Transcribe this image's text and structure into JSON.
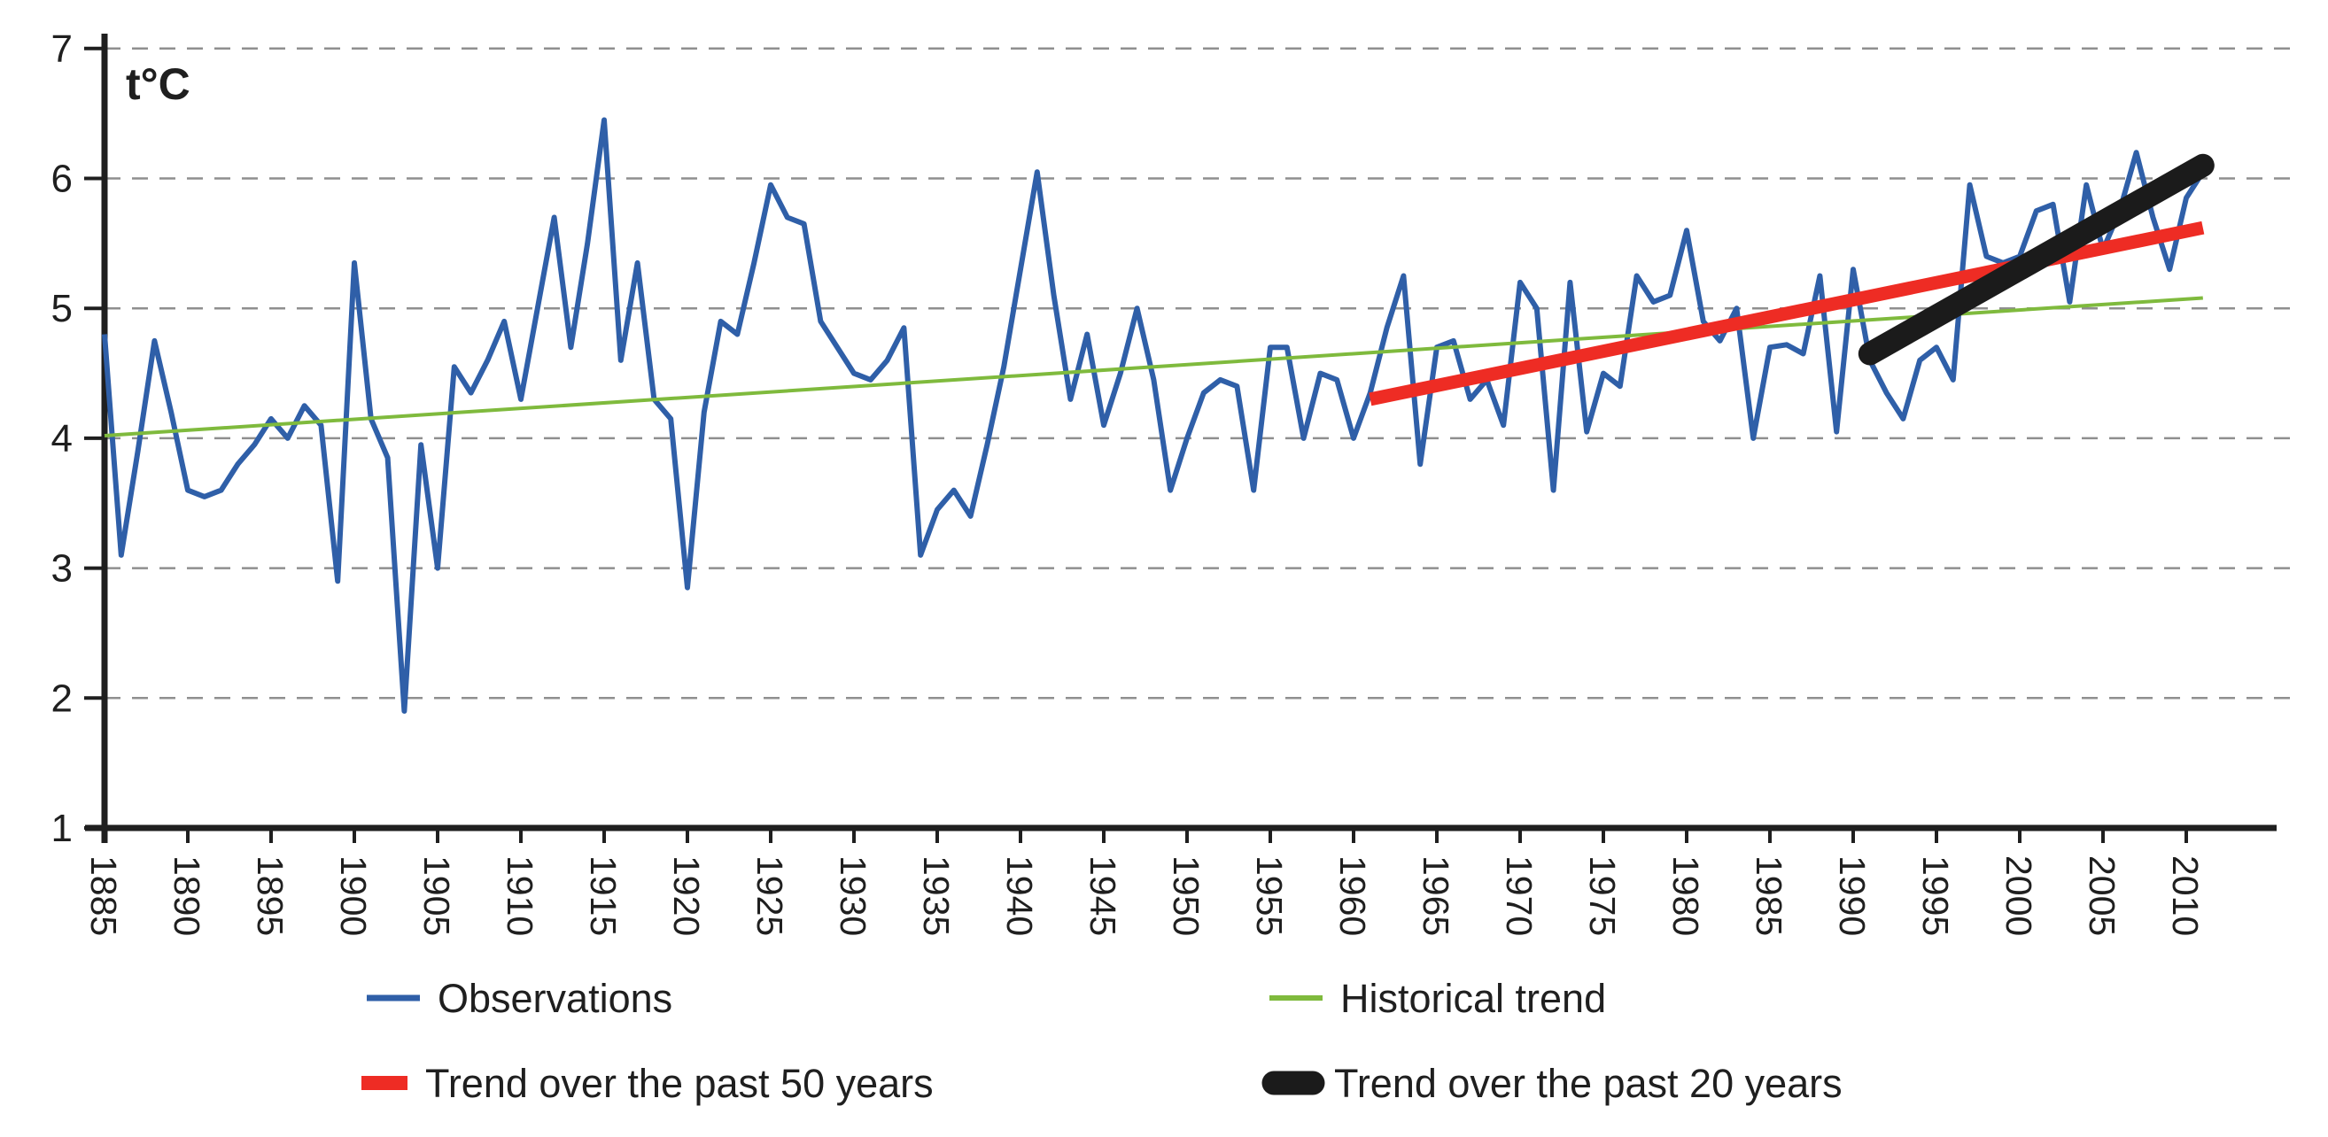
{
  "chart_data": {
    "type": "line",
    "title": "",
    "unit_label": "t°C",
    "y_axis": {
      "min": 1,
      "max": 7,
      "tick_labels": [
        "1",
        "2",
        "3",
        "4",
        "5",
        "6",
        "7"
      ],
      "gridlines_at": [
        2,
        3,
        4,
        5,
        6,
        7
      ],
      "grid_on": true
    },
    "x_axis": {
      "start_year": 1885,
      "end_year": 2011,
      "tick_labels": [
        "1885",
        "1890",
        "1895",
        "1900",
        "1905",
        "1910",
        "1915",
        "1920",
        "1925",
        "1930",
        "1935",
        "1940",
        "1945",
        "1950",
        "1955",
        "1960",
        "1965",
        "1970",
        "1975",
        "1980",
        "1985",
        "1990",
        "1995",
        "2000",
        "2005",
        "2010"
      ]
    },
    "series": [
      {
        "name": "Observations",
        "type": "annual",
        "color": "#2f5fa8",
        "stroke_width": 6,
        "start_year": 1885,
        "values": [
          4.8,
          3.1,
          3.9,
          4.75,
          4.2,
          3.6,
          3.55,
          3.6,
          3.8,
          3.95,
          4.15,
          4.0,
          4.25,
          4.1,
          2.9,
          5.35,
          4.15,
          3.85,
          1.9,
          3.95,
          3.0,
          4.55,
          4.35,
          4.6,
          4.9,
          4.3,
          5.0,
          5.7,
          4.7,
          5.5,
          6.45,
          4.6,
          5.35,
          4.3,
          4.15,
          2.85,
          4.2,
          4.9,
          4.8,
          5.35,
          5.95,
          5.7,
          5.65,
          4.9,
          4.7,
          4.5,
          4.45,
          4.6,
          4.85,
          3.1,
          3.45,
          3.6,
          3.4,
          3.95,
          4.55,
          5.3,
          6.05,
          5.1,
          4.3,
          4.8,
          4.1,
          4.5,
          5.0,
          4.45,
          3.6,
          4.0,
          4.35,
          4.45,
          4.4,
          3.6,
          4.7,
          4.7,
          4.0,
          4.5,
          4.45,
          4.0,
          4.35,
          4.85,
          5.25,
          3.8,
          4.7,
          4.75,
          4.3,
          4.45,
          4.1,
          5.2,
          5.0,
          3.6,
          5.2,
          4.05,
          4.5,
          4.4,
          5.25,
          5.05,
          5.1,
          5.6,
          4.9,
          4.75,
          5.0,
          4.0,
          4.7,
          4.72,
          4.65,
          5.25,
          4.05,
          5.3,
          4.6,
          4.35,
          4.15,
          4.6,
          4.7,
          4.45,
          5.95,
          5.4,
          5.35,
          5.4,
          5.75,
          5.8,
          5.05,
          5.95,
          5.45,
          5.75,
          6.2,
          5.7,
          5.3,
          5.85,
          6.05
        ]
      },
      {
        "name": "Historical trend",
        "type": "trend",
        "color": "#7fba3d",
        "stroke_width": 4,
        "linecap": "butt",
        "points": [
          [
            1885,
            4.02
          ],
          [
            2011,
            5.08
          ]
        ]
      },
      {
        "name": "Trend over the past 50 years",
        "type": "trend",
        "color": "#ee2c24",
        "stroke_width": 15,
        "linecap": "butt",
        "points": [
          [
            1961,
            4.3
          ],
          [
            2011,
            5.62
          ]
        ]
      },
      {
        "name": "Trend over the past 20 years",
        "type": "trend",
        "color": "#1b1b1b",
        "stroke_width": 26,
        "linecap": "round",
        "points": [
          [
            1991,
            4.65
          ],
          [
            2011,
            6.1
          ]
        ]
      }
    ],
    "legend": {
      "position": "bottom",
      "items": [
        {
          "label": "Observations",
          "color": "#2f5fa8",
          "swatch": "thin-line"
        },
        {
          "label": "Historical trend",
          "color": "#7fba3d",
          "swatch": "thin-line"
        },
        {
          "label": "Trend over the past 50 years",
          "color": "#ee2c24",
          "swatch": "thick-line"
        },
        {
          "label": "Trend over the past 20 years",
          "color": "#1b1b1b",
          "swatch": "thick-round-line"
        }
      ]
    },
    "colors": {
      "axis": "#1f1f1f",
      "gridline": "#8f8f8f",
      "background": "#ffffff",
      "text": "#1f1f1f"
    }
  }
}
